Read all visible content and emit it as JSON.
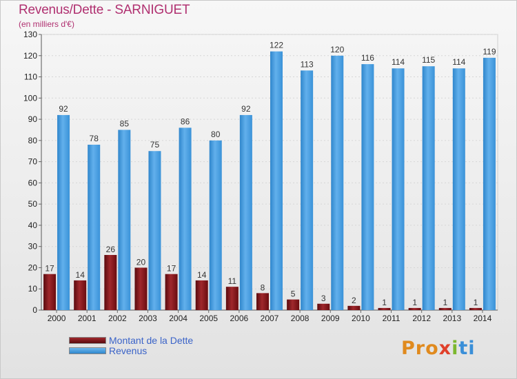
{
  "colors": {
    "debt": "#7a0f14",
    "revenue": "#3e9ae0",
    "title": "#b03070",
    "legend_text": "#3a63c8"
  },
  "logo": {
    "text": "Proxiti",
    "parts": [
      "Pro",
      "x",
      "i",
      "ti"
    ]
  },
  "chart_data": {
    "type": "bar",
    "title": "Revenus/Dette - SARNIGUET",
    "subtitle": "(en milliers d'€)",
    "xlabel": "",
    "ylabel": "",
    "ylim": [
      0,
      130
    ],
    "ytick_step": 10,
    "grid": true,
    "legend_position": "bottom-left",
    "categories": [
      "2000",
      "2001",
      "2002",
      "2003",
      "2004",
      "2005",
      "2006",
      "2007",
      "2008",
      "2009",
      "2010",
      "2011",
      "2012",
      "2013",
      "2014"
    ],
    "series": [
      {
        "name": "Montant de la Dette",
        "values": [
          17,
          14,
          26,
          20,
          17,
          14,
          11,
          8,
          5,
          3,
          2,
          1,
          1,
          1,
          1
        ]
      },
      {
        "name": "Revenus",
        "values": [
          92,
          78,
          85,
          75,
          86,
          80,
          92,
          122,
          113,
          120,
          116,
          114,
          115,
          114,
          119
        ]
      }
    ]
  }
}
